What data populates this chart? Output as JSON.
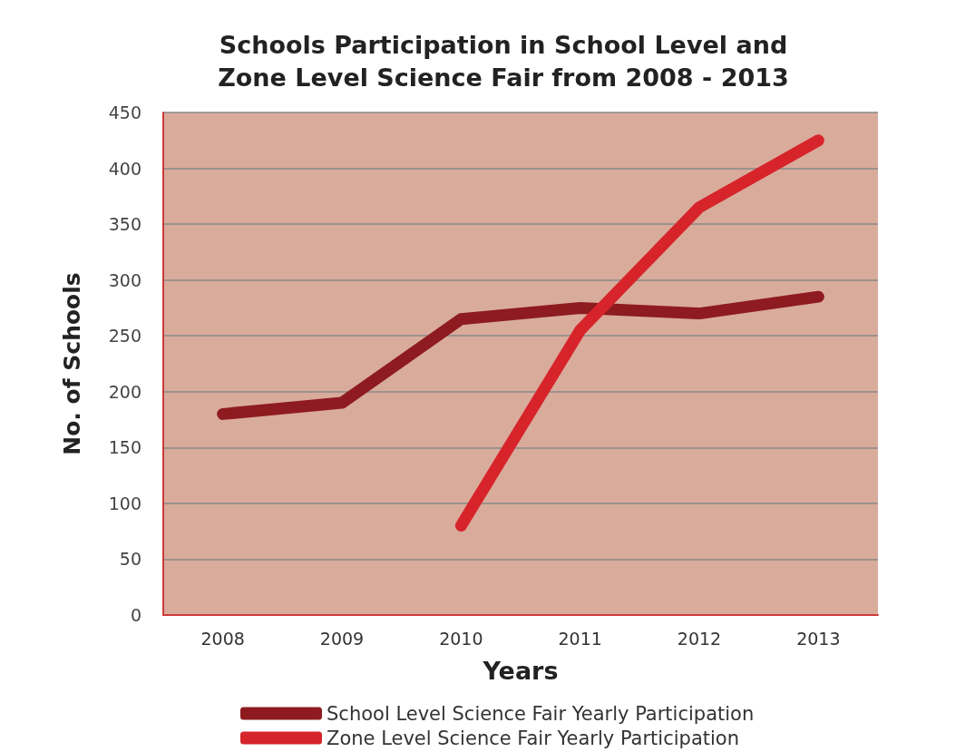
{
  "chart_data": {
    "type": "line",
    "title": "Schools Participation in School Level and\nZone Level Science Fair from 2008 - 2013",
    "xlabel": "Years",
    "ylabel": "No. of Schools",
    "categories": [
      "2008",
      "2009",
      "2010",
      "2011",
      "2012",
      "2013"
    ],
    "series": [
      {
        "name": "School Level Science Fair Yearly Participation",
        "color": "#8e1b1f",
        "values": [
          180,
          190,
          265,
          275,
          270,
          285
        ]
      },
      {
        "name": "Zone Level Science Fair Yearly Participation",
        "color": "#d7242b",
        "values": [
          null,
          null,
          80,
          255,
          365,
          425
        ]
      }
    ],
    "ylim": [
      0,
      450
    ],
    "yticks": [
      0,
      50,
      100,
      150,
      200,
      250,
      300,
      350,
      400,
      450
    ],
    "grid": "y",
    "legend": "bottom",
    "line_style": "solid"
  }
}
